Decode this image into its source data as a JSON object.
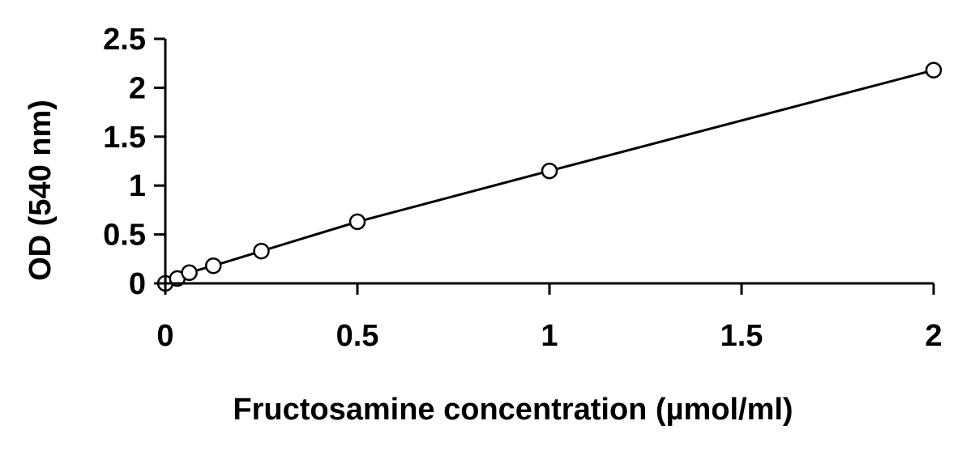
{
  "chart_data": {
    "type": "scatter",
    "title": "",
    "xlabel": "Fructosamine concentration (µmol/ml)",
    "ylabel": "OD (540 nm)",
    "xlim": [
      0,
      2
    ],
    "ylim": [
      0,
      2.5
    ],
    "x_ticks": [
      0,
      0.5,
      1,
      1.5,
      2
    ],
    "y_ticks": [
      0,
      0.5,
      1,
      1.5,
      2,
      2.5
    ],
    "x_tick_labels": [
      "0",
      "0.5",
      "1",
      "1.5",
      "2"
    ],
    "y_tick_labels": [
      "0",
      "0.5",
      "1",
      "1.5",
      "2",
      "2.5"
    ],
    "grid": false,
    "legend": "none",
    "marker": "open-circle",
    "series": [
      {
        "x": [
          0,
          0.03125,
          0.0625,
          0.125,
          0.25,
          0.5,
          1,
          2
        ],
        "y": [
          0.0,
          0.05,
          0.11,
          0.18,
          0.33,
          0.63,
          1.15,
          2.18
        ]
      }
    ],
    "fit_line": {
      "x": [
        0,
        0.03125,
        0.0625,
        0.125,
        0.25,
        0.5,
        1,
        2
      ],
      "y": [
        0.0,
        0.05,
        0.11,
        0.18,
        0.33,
        0.63,
        1.15,
        2.18
      ]
    }
  }
}
